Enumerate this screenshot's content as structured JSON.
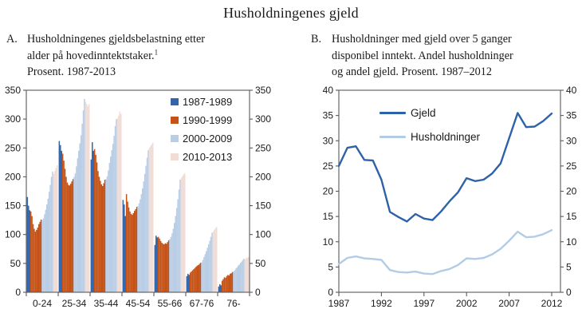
{
  "main_title": "Husholdningenes gjeld",
  "colors": {
    "bar_blue": "#3465a8",
    "bar_orange": "#c55318",
    "bar_lightblue": "#b9cde5",
    "bar_pink": "#f1dcd6",
    "line_dark": "#2e62a8",
    "line_light": "#b3cce6",
    "axis": "#595959",
    "text": "#1a1a1a"
  },
  "panels": {
    "a": {
      "label": "A.",
      "title_lines": [
        "Husholdningenes gjeldsbelastning etter",
        "alder på hovedinntektstaker.",
        "Prosent. 1987-2013"
      ],
      "footnote_marker": "1"
    },
    "b": {
      "label": "B.",
      "title_lines": [
        "Husholdninger med gjeld over 5 ganger",
        "disponibel inntekt. Andel husholdninger",
        "og andel gjeld. Prosent. 1987–2012"
      ]
    }
  },
  "chart_data": [
    {
      "type": "bar",
      "panel": "A",
      "title": "Husholdningenes gjeldsbelastning etter alder på hovedinntektstaker. Prosent. 1987-2013",
      "ylim": [
        0,
        350
      ],
      "yticks": [
        0,
        50,
        100,
        150,
        200,
        250,
        300,
        350
      ],
      "grid": false,
      "legend_position": "top-right-inside",
      "bars_per_category_years": "1987-2013",
      "categories": [
        "0-24",
        "25-34",
        "35-44",
        "45-54",
        "55-66",
        "67-76",
        "76-"
      ],
      "legend": [
        {
          "label": "1987-1989",
          "color": "#3465a8",
          "bar_count": 3
        },
        {
          "label": "1990-1999",
          "color": "#c55318",
          "bar_count": 10
        },
        {
          "label": "2000-2009",
          "color": "#b9cde5",
          "bar_count": 10
        },
        {
          "label": "2010-2013",
          "color": "#f1dcd6",
          "bar_count": 4
        }
      ],
      "groups": [
        {
          "category": "0-24",
          "values": [
            165,
            150,
            142,
            140,
            132,
            118,
            110,
            105,
            108,
            112,
            118,
            122,
            126,
            125,
            128,
            135,
            143,
            152,
            162,
            174,
            186,
            200,
            209,
            205,
            210,
            215,
            220
          ]
        },
        {
          "category": "25-34",
          "values": [
            262,
            255,
            245,
            240,
            228,
            214,
            200,
            190,
            186,
            185,
            188,
            192,
            196,
            200,
            206,
            218,
            232,
            245,
            258,
            272,
            292,
            315,
            335,
            330,
            326,
            322,
            326
          ]
        },
        {
          "category": "35-44",
          "values": [
            230,
            260,
            245,
            248,
            238,
            225,
            210,
            200,
            193,
            187,
            184,
            189,
            195,
            196,
            201,
            211,
            224,
            235,
            246,
            257,
            271,
            288,
            300,
            301,
            306,
            313,
            309
          ]
        },
        {
          "category": "45-54",
          "values": [
            160,
            152,
            132,
            170,
            157,
            147,
            140,
            136,
            134,
            137,
            141,
            144,
            148,
            149,
            154,
            161,
            170,
            180,
            192,
            205,
            219,
            233,
            246,
            250,
            253,
            256,
            259
          ]
        },
        {
          "category": "55-66",
          "values": [
            82,
            98,
            95,
            96,
            93,
            89,
            86,
            84,
            83,
            85,
            84,
            87,
            90,
            92,
            96,
            102,
            110,
            120,
            132,
            146,
            161,
            178,
            195,
            198,
            201,
            204,
            206
          ]
        },
        {
          "category": "67-76",
          "values": [
            28,
            32,
            30,
            34,
            36,
            38,
            40,
            42,
            44,
            46,
            47,
            49,
            51,
            52,
            56,
            61,
            66,
            71,
            77,
            83,
            89,
            96,
            103,
            105,
            108,
            111,
            113
          ]
        },
        {
          "category": "76-",
          "values": [
            10,
            14,
            12,
            20,
            23,
            26,
            25,
            28,
            30,
            29,
            32,
            33,
            35,
            36,
            38,
            41,
            43,
            46,
            48,
            51,
            53,
            56,
            58,
            57,
            59,
            60,
            61
          ]
        }
      ]
    },
    {
      "type": "line",
      "panel": "B",
      "title": "Husholdninger med gjeld over 5 ganger disponibel inntekt. Andel husholdninger og andel gjeld. Prosent. 1987–2012",
      "ylim": [
        0,
        40
      ],
      "yticks": [
        0,
        5,
        10,
        15,
        20,
        25,
        30,
        35,
        40
      ],
      "grid": false,
      "legend_position": "top-left-inside",
      "x_start": 1987,
      "x_end": 2012,
      "xticks": [
        1987,
        1992,
        1997,
        2002,
        2007,
        2012
      ],
      "series": [
        {
          "name": "Gjeld",
          "color": "#2e62a8",
          "values": [
            25.0,
            28.6,
            28.9,
            26.2,
            26.1,
            22.3,
            15.9,
            14.9,
            14.0,
            15.5,
            14.6,
            14.3,
            16.0,
            18.0,
            19.8,
            22.6,
            22.0,
            22.3,
            23.5,
            25.5,
            30.5,
            35.5,
            32.7,
            32.8,
            33.9,
            35.4
          ]
        },
        {
          "name": "Husholdninger",
          "color": "#b3cce6",
          "values": [
            5.6,
            6.8,
            7.1,
            6.7,
            6.6,
            6.4,
            4.4,
            4.0,
            3.9,
            4.1,
            3.7,
            3.6,
            4.2,
            4.6,
            5.4,
            6.7,
            6.6,
            6.8,
            7.5,
            8.6,
            10.2,
            12.0,
            10.9,
            11.0,
            11.5,
            12.3
          ]
        }
      ]
    }
  ]
}
